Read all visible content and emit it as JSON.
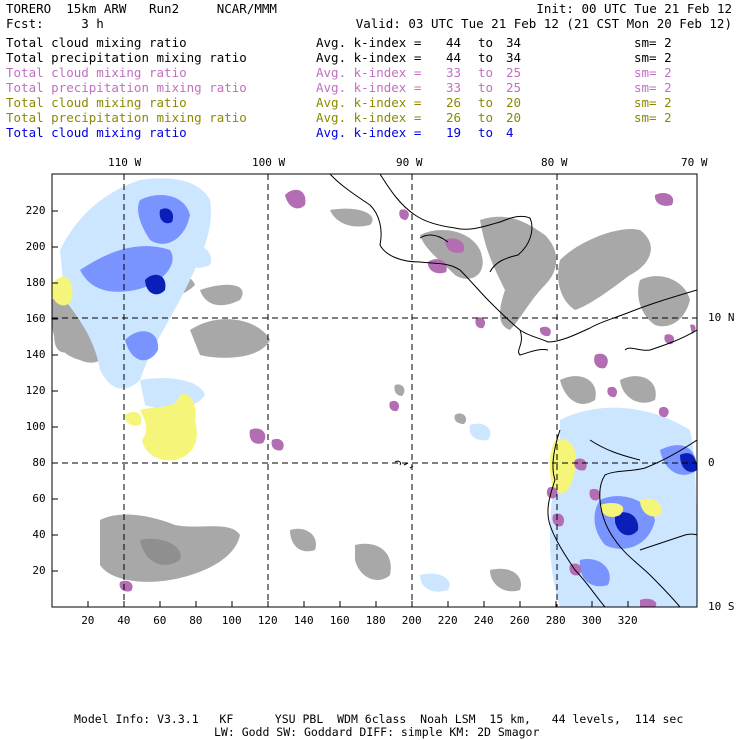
{
  "header": {
    "model_line": "TORERO  15km ARW   Run2     NCAR/MMM",
    "fcst_line": "Fcst:     3 h",
    "init_line": "Init: 00 UTC Tue 21 Feb 12",
    "valid_line": "Valid: 03 UTC Tue 21 Feb 12 (21 CST Mon 20 Feb 12)"
  },
  "legend": [
    {
      "field": "Total cloud mixing ratio",
      "avg": "Avg. k-index =",
      "k1": "44",
      "to": "to",
      "k2": "34",
      "sm": "sm= 2",
      "color": "#000000"
    },
    {
      "field": "Total precipitation mixing ratio",
      "avg": "Avg. k-index =",
      "k1": "44",
      "to": "to",
      "k2": "34",
      "sm": "sm= 2",
      "color": "#000000"
    },
    {
      "field": "Total cloud mixing ratio",
      "avg": "Avg. k-index =",
      "k1": "33",
      "to": "to",
      "k2": "25",
      "sm": "sm= 2",
      "color": "#c070c0"
    },
    {
      "field": "Total precipitation mixing ratio",
      "avg": "Avg. k-index =",
      "k1": "33",
      "to": "to",
      "k2": "25",
      "sm": "sm= 2",
      "color": "#c070c0"
    },
    {
      "field": "Total cloud mixing ratio",
      "avg": "Avg. k-index =",
      "k1": "26",
      "to": "to",
      "k2": "20",
      "sm": "sm= 2",
      "color": "#8a8a00"
    },
    {
      "field": "Total precipitation mixing ratio",
      "avg": "Avg. k-index =",
      "k1": "26",
      "to": "to",
      "k2": "20",
      "sm": "sm= 2",
      "color": "#8a8a00"
    },
    {
      "field": "Total cloud mixing ratio",
      "avg": "Avg. k-index =",
      "k1": "19",
      "to": "to",
      "k2": "4",
      "sm": "",
      "color": "#0000e0"
    }
  ],
  "map": {
    "lon_labels": [
      "110 W",
      "100 W",
      "90 W",
      "80 W",
      "70 W"
    ],
    "lat_labels": [
      "10 N",
      "0",
      "10 S"
    ],
    "x_ticks": [
      "20",
      "40",
      "60",
      "80",
      "100",
      "120",
      "140",
      "160",
      "180",
      "200",
      "220",
      "240",
      "260",
      "280",
      "300",
      "320"
    ],
    "y_ticks": [
      "20",
      "40",
      "60",
      "80",
      "100",
      "120",
      "140",
      "160",
      "180",
      "200",
      "220"
    ],
    "colors": {
      "gray": "#a8a8a8",
      "purple": "#b36eb3",
      "yellow": "#f5f57a",
      "light_blue": "#cce6ff",
      "blue": "#4d66ff",
      "dark_blue": "#0a1fb8"
    }
  },
  "footer": {
    "line1": "Model Info: V3.3.1   KF      YSU PBL  WDM 6class  Noah LSM  15 km,   44 levels,  114 sec",
    "line2": "LW: Godd SW: Goddard DIFF: simple KM: 2D Smagor"
  }
}
